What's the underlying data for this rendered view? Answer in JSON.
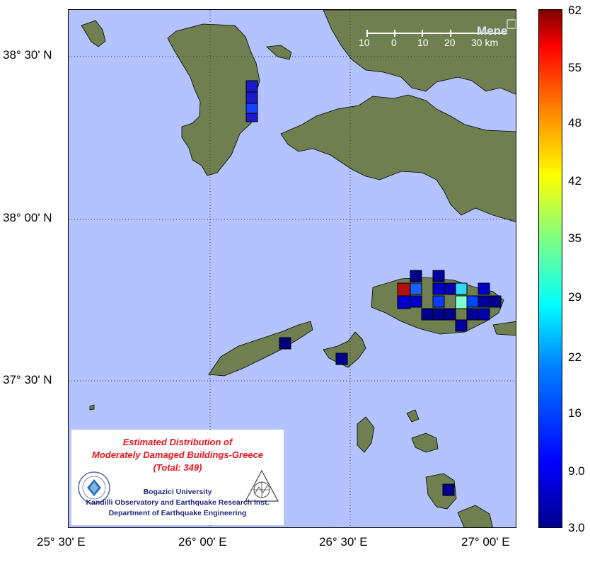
{
  "map": {
    "lat_labels": [
      "38° 30' N",
      "38° 00' N",
      "37° 30' N"
    ],
    "lon_labels": [
      "25° 30' E",
      "26° 00' E",
      "26° 30' E",
      "27° 00' E"
    ],
    "scale_bar": {
      "ticks": [
        "10",
        "0",
        "10",
        "20",
        "30 km"
      ]
    },
    "place_label": "Mene",
    "colors": {
      "sea": "#b3c3ff",
      "land": "#6f7f4f",
      "grid": "#333333"
    }
  },
  "colorbar": {
    "tick_labels": [
      "62",
      "55",
      "48",
      "42",
      "35",
      "29",
      "22",
      "16",
      "9.0",
      "3.0"
    ],
    "range": [
      3,
      62
    ],
    "colormap": "jet"
  },
  "legend": {
    "title_line1": "Estimated Distribution of",
    "title_line2": "Moderately Damaged Buildings-Greece",
    "total": "(Total: 349)",
    "org_line1": "Bogazici University",
    "org_line2": "Kandilli Observatory and Earthquake Research Inst.",
    "org_line3": "Department of Earthquake Engineering",
    "logo_left": "bogazici-university-seal",
    "logo_right": "kandilli-observatory-logo"
  },
  "damage_cells": [
    {
      "color": "#1a1acc"
    },
    {
      "color": "#1a1acc"
    },
    {
      "color": "#1a40ff"
    },
    {
      "color": "#1a1acc"
    },
    {
      "color": "#00007f"
    },
    {
      "color": "#00008f"
    },
    {
      "color": "#00008f"
    },
    {
      "color": "#00008f"
    },
    {
      "color": "#b01010"
    },
    {
      "color": "#1a60ff"
    },
    {
      "color": "#00009f"
    },
    {
      "color": "#0000cc"
    },
    {
      "color": "#0000b0"
    },
    {
      "color": "#30d8ff"
    },
    {
      "color": "#0000cc"
    },
    {
      "color": "#0000cc"
    },
    {
      "color": "#0000cc"
    },
    {
      "color": "#0a3cff"
    },
    {
      "color": "#0a50ff"
    },
    {
      "color": "#80ffd0"
    },
    {
      "color": "#0044ff"
    },
    {
      "color": "#00009f"
    },
    {
      "color": "#00008f"
    },
    {
      "color": "#00008f"
    },
    {
      "color": "#00008f"
    },
    {
      "color": "#00008f"
    },
    {
      "color": "#00009f"
    },
    {
      "color": "#0000b0"
    },
    {
      "color": "#0000a0"
    }
  ]
}
